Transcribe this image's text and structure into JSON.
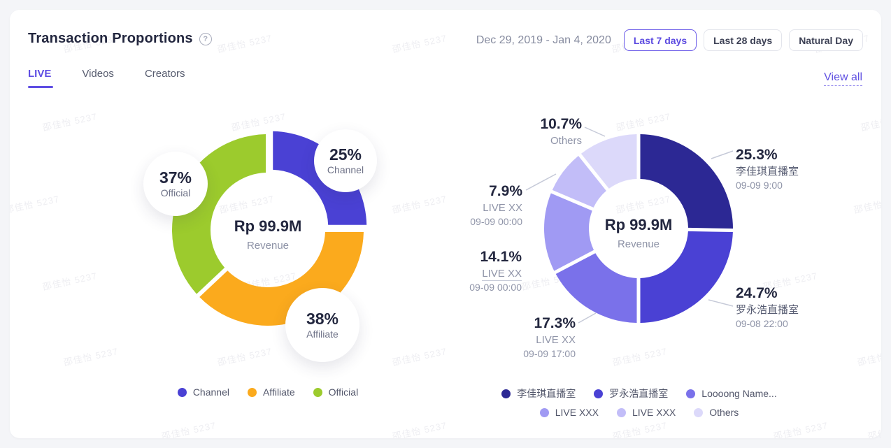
{
  "watermark": {
    "text": "邵佳怡 5237"
  },
  "header": {
    "title": "Transaction Proportions",
    "help_icon": "?",
    "date_range": "Dec 29, 2019 - Jan 4, 2020",
    "range_buttons": [
      {
        "label": "Last 7 days",
        "active": true
      },
      {
        "label": "Last 28 days",
        "active": false
      },
      {
        "label": "Natural Day",
        "active": false
      }
    ]
  },
  "tabs": [
    {
      "label": "LIVE",
      "active": true
    },
    {
      "label": "Videos",
      "active": false
    },
    {
      "label": "Creators",
      "active": false
    }
  ],
  "view_all_label": "View all",
  "chart_data": [
    {
      "type": "pie",
      "title": "Transaction proportions by source (LIVE)",
      "center_value": "Rp 99.9M",
      "center_label": "Revenue",
      "slices": [
        {
          "label": "Channel",
          "value": 25,
          "display": "25%",
          "color": "#4a41d4",
          "exploded": true
        },
        {
          "label": "Affiliate",
          "value": 38,
          "display": "38%",
          "color": "#fbaa1d",
          "exploded": false
        },
        {
          "label": "Official",
          "value": 37,
          "display": "37%",
          "color": "#9ccb2d",
          "exploded": false
        }
      ],
      "legend": [
        {
          "label": "Channel",
          "color": "#4a41d4"
        },
        {
          "label": "Affiliate",
          "color": "#fbaa1d"
        },
        {
          "label": "Official",
          "color": "#9ccb2d"
        }
      ]
    },
    {
      "type": "pie",
      "title": "Transaction proportions by live room (LIVE)",
      "center_value": "Rp 99.9M",
      "center_label": "Revenue",
      "slices": [
        {
          "label": "李佳琪直播室",
          "sublabel": "09-09 9:00",
          "value": 25.3,
          "display": "25.3%",
          "color": "#2c2894"
        },
        {
          "label": "罗永浩直播室",
          "sublabel": "09-08 22:00",
          "value": 24.7,
          "display": "24.7%",
          "color": "#4a41d4"
        },
        {
          "label": "LIVE XX",
          "sublabel": "09-09 17:00",
          "value": 17.3,
          "display": "17.3%",
          "color": "#7a71ea"
        },
        {
          "label": "LIVE XX",
          "sublabel": "09-09 00:00",
          "value": 14.1,
          "display": "14.1%",
          "color": "#a09af3"
        },
        {
          "label": "LIVE XX",
          "sublabel": "09-09 00:00",
          "value": 7.9,
          "display": "7.9%",
          "color": "#c2bdf8"
        },
        {
          "label": "Others",
          "sublabel": "",
          "value": 10.7,
          "display": "10.7%",
          "color": "#dcd9fa"
        }
      ],
      "legend": [
        {
          "label": "李佳琪直播室",
          "color": "#2c2894"
        },
        {
          "label": "罗永浩直播室",
          "color": "#4a41d4"
        },
        {
          "label": "Loooong Name...",
          "color": "#7a71ea"
        },
        {
          "label": "LIVE XXX",
          "color": "#a09af3"
        },
        {
          "label": "LIVE XXX",
          "color": "#c2bdf8"
        },
        {
          "label": "Others",
          "color": "#dcd9fa"
        }
      ]
    }
  ]
}
